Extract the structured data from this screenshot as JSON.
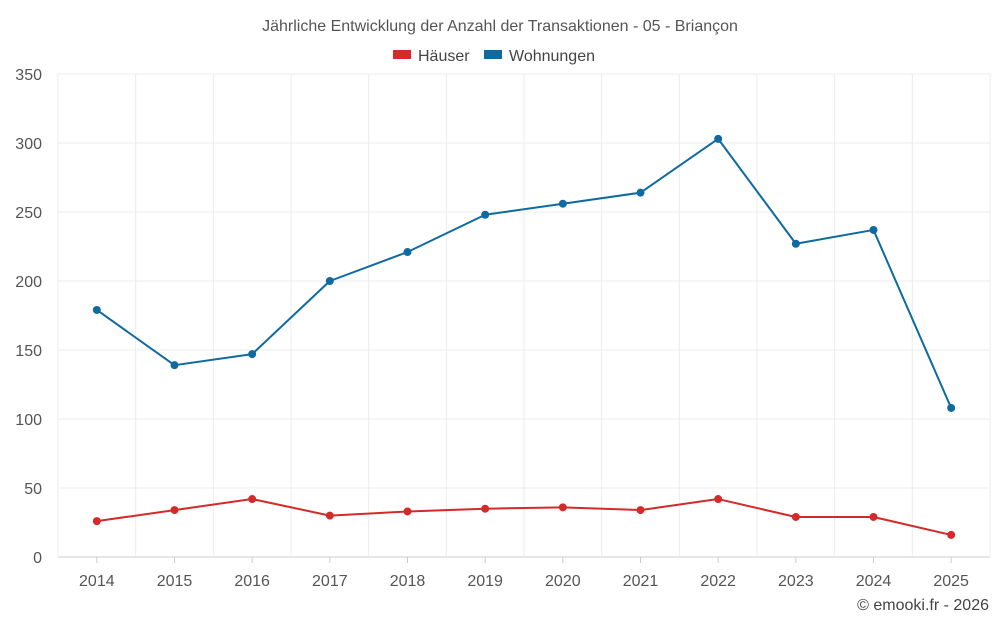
{
  "chart_data": {
    "type": "line",
    "title": "Jährliche Entwicklung der Anzahl der Transaktionen - 05 - Briançon",
    "categories": [
      "2014",
      "2015",
      "2016",
      "2017",
      "2018",
      "2019",
      "2020",
      "2021",
      "2022",
      "2023",
      "2024",
      "2025"
    ],
    "series": [
      {
        "name": "Häuser",
        "color": "#d42a2a",
        "values": [
          26,
          34,
          42,
          30,
          33,
          35,
          36,
          34,
          42,
          29,
          29,
          16
        ]
      },
      {
        "name": "Wohnungen",
        "color": "#0e6aa0",
        "values": [
          179,
          139,
          147,
          200,
          221,
          248,
          256,
          264,
          303,
          227,
          237,
          108
        ]
      }
    ],
    "ylim": [
      0,
      350
    ],
    "yticks": [
      0,
      50,
      100,
      150,
      200,
      250,
      300,
      350
    ],
    "xlabel": "",
    "ylabel": "",
    "grid": true,
    "legend_position": "top-center"
  },
  "footer": "© emooki.fr - 2026"
}
